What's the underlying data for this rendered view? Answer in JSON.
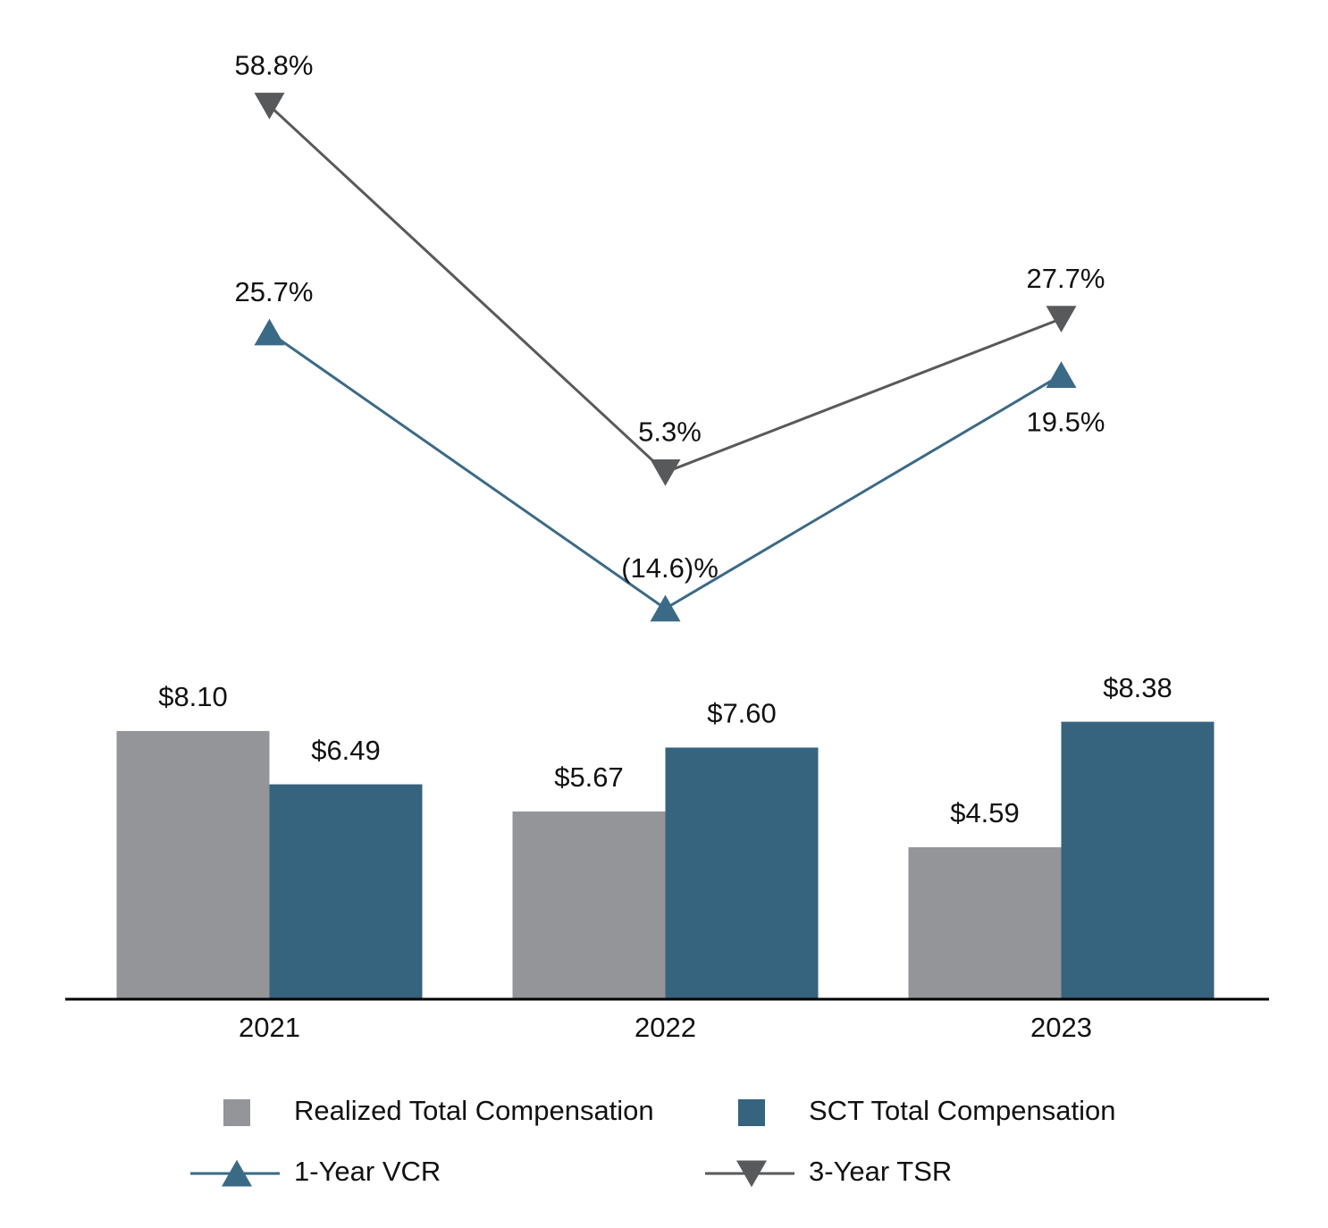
{
  "chart_data": {
    "type": "combo",
    "categories": [
      "2021",
      "2022",
      "2023"
    ],
    "ylim": [
      0,
      29.1
    ],
    "y2lim": [
      -71.6,
      69
    ],
    "series": [
      {
        "name": "Realized Total Compensation",
        "type": "bar",
        "color": "#939598",
        "values": [
          8.1,
          5.67,
          4.59
        ],
        "value_labels": [
          "$8.10",
          "$5.67",
          "$4.59"
        ]
      },
      {
        "name": "SCT Total Compensation",
        "type": "bar",
        "color": "#36637d",
        "values": [
          6.49,
          7.6,
          8.38
        ],
        "value_labels": [
          "$6.49",
          "$7.60",
          "$8.38"
        ]
      },
      {
        "name": "1-Year VCR",
        "type": "line",
        "axis": "y2",
        "marker": "triangle-up",
        "color": "#3b6a86",
        "values": [
          25.7,
          -14.6,
          19.5
        ],
        "value_labels": [
          "25.7%",
          "(14.6)%",
          "19.5%"
        ]
      },
      {
        "name": "3-Year TSR",
        "type": "line",
        "axis": "y2",
        "marker": "triangle-down",
        "color": "#58595b",
        "values": [
          58.8,
          5.3,
          27.7
        ],
        "value_labels": [
          "58.8%",
          "5.3%",
          "27.7%"
        ]
      }
    ]
  }
}
